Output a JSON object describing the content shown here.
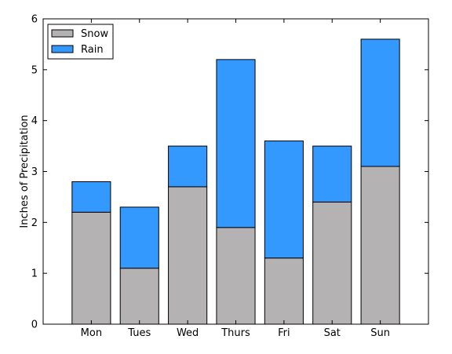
{
  "chart_data": {
    "type": "bar",
    "stacked": true,
    "categories": [
      "Mon",
      "Tues",
      "Wed",
      "Thurs",
      "Fri",
      "Sat",
      "Sun"
    ],
    "series": [
      {
        "name": "Snow",
        "color": "#b5b2b3",
        "values": [
          2.2,
          1.1,
          2.7,
          1.9,
          1.3,
          2.4,
          3.1
        ]
      },
      {
        "name": "Rain",
        "color": "#3399ff",
        "values": [
          0.6,
          1.2,
          0.8,
          3.3,
          2.3,
          1.1,
          2.5
        ]
      }
    ],
    "title": "",
    "xlabel": "",
    "ylabel": "Inches of Precipitation",
    "ylim": [
      0,
      6
    ],
    "yticks": [
      "0",
      "1",
      "2",
      "3",
      "4",
      "5",
      "6"
    ],
    "grid": false,
    "legend_position": "top-left"
  }
}
